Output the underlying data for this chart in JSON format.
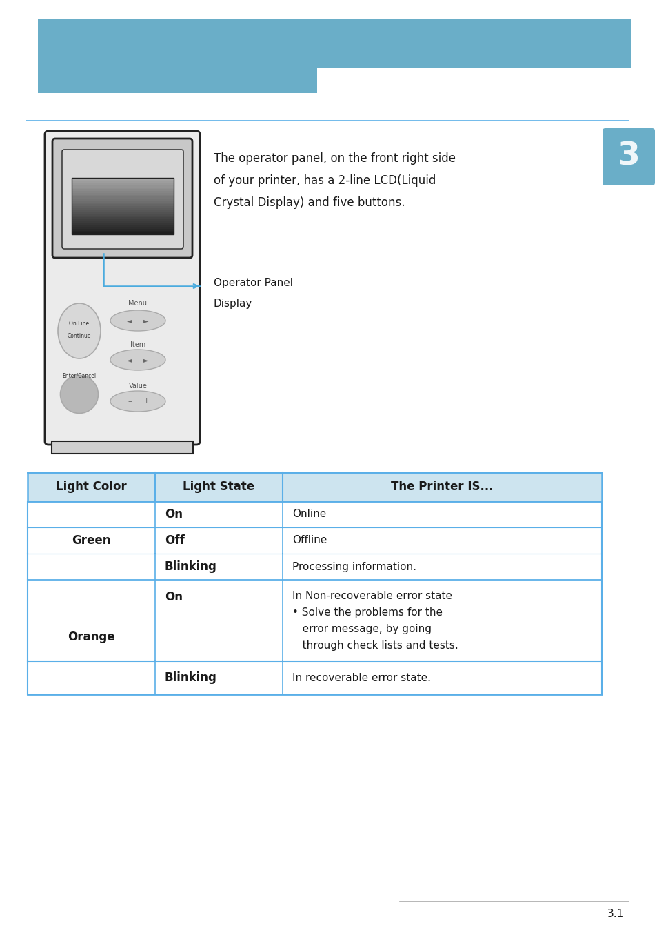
{
  "bg_color": "#ffffff",
  "header_blue": "#6aaec8",
  "line_blue": "#5aafe8",
  "tab_blue_bg": "#cde4ef",
  "tab_border": "#5aafe8",
  "chapter_num": "3",
  "chapter_box_color": "#6aaec8",
  "page_num": "3.1",
  "horizontal_rule_color": "#5aafe8",
  "body_text1": "The operator panel, on the front right side",
  "body_text2": "of your printer, has a 2-line LCD(Liquid",
  "body_text3": "Crystal Display) and five buttons.",
  "label_text1": "Operator Panel",
  "label_text2": "Display",
  "table_header": [
    "Light Color",
    "Light State",
    "The Printer IS..."
  ],
  "table_rows": [
    [
      "Green",
      "On",
      "Online"
    ],
    [
      "",
      "Off",
      "Offline"
    ],
    [
      "",
      "Blinking",
      "Processing information."
    ],
    [
      "Orange",
      "On",
      "In Non-recoverable error state\n• Solve the problems for the\n   error message, by going\n   through check lists and tests."
    ],
    [
      "",
      "Blinking",
      "In recoverable error state."
    ]
  ],
  "text_color": "#1a1a1a",
  "panel_gray": "#ebebeb",
  "panel_border": "#222222",
  "btn_gray": "#cccccc",
  "btn_border": "#999999",
  "callout_color": "#4aabde"
}
